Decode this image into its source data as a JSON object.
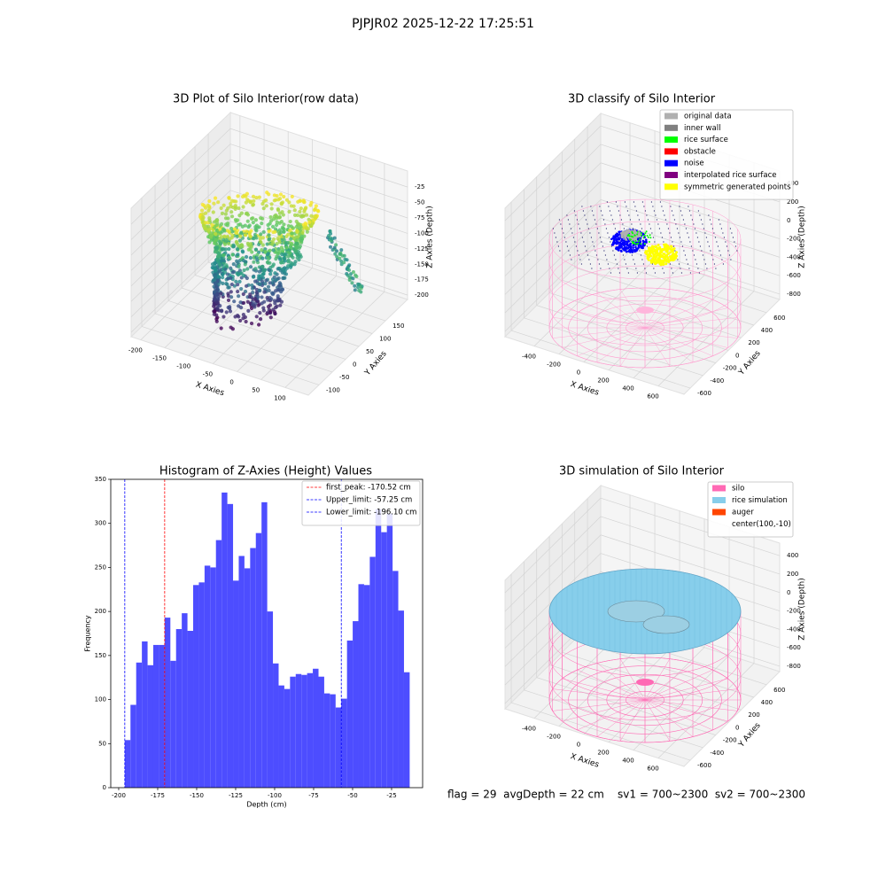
{
  "title": "PJPJR02 2025-12-22 17:25:51",
  "status": "flag = 29  avgDepth = 22 cm    sv1 = 700~2300  sv2 = 700~2300",
  "chart_data": [
    {
      "type": "scatter3d",
      "title": "3D Plot of Silo Interior(row data)",
      "xlabel": "X Axies",
      "ylabel": "Y Axies",
      "zlabel": "Z Axies (Depth)",
      "xlim": [
        -220,
        148
      ],
      "ylim": [
        -140,
        233
      ],
      "zlim": [
        -207,
        1
      ],
      "xticks": [
        -200,
        -150,
        -100,
        -50,
        0,
        50,
        100
      ],
      "yticks": [
        -100,
        -50,
        0,
        50,
        100,
        150
      ],
      "zticks": [
        -25,
        -50,
        -75,
        -100,
        -125,
        -150,
        -175,
        -200
      ]
    },
    {
      "type": "scatter3d",
      "title": "3D classify of Silo Interior",
      "xlabel": "X Axies",
      "ylabel": "Y Axies",
      "zlabel": "Z Axies (Depth)",
      "xlim": [
        -636,
        807
      ],
      "ylim": [
        -698,
        808
      ],
      "zlim": [
        -858,
        536
      ],
      "xticks": [
        -400,
        -200,
        0,
        200,
        400,
        600
      ],
      "yticks": [
        -600,
        -400,
        -200,
        0,
        200,
        400,
        600
      ],
      "zticks": [
        400,
        200,
        0,
        -200,
        -400,
        -600,
        -800
      ],
      "legend_loc": "upper right",
      "legend": [
        {
          "name": "original data",
          "color": "#b0b0b0"
        },
        {
          "name": "inner wall",
          "color": "#808080"
        },
        {
          "name": "rice surface",
          "color": "#00ff00"
        },
        {
          "name": "obstacle",
          "color": "#ff0000"
        },
        {
          "name": "noise",
          "color": "#0000ff"
        },
        {
          "name": "interpolated rice surface",
          "color": "#800080"
        },
        {
          "name": "symmetric generated points",
          "color": "#ffff00"
        }
      ]
    },
    {
      "type": "histogram",
      "title": "Histogram of Z-Axies (Height) Values",
      "xlabel": "Depth (cm)",
      "ylabel": "Frequency",
      "color": "#4d4dff",
      "xlim": [
        -205.1,
        -5.1
      ],
      "ylim": [
        0,
        350
      ],
      "xticks": [
        -200,
        -175,
        -150,
        -125,
        -100,
        -75,
        -50,
        -25
      ],
      "yticks": [
        0,
        50,
        100,
        150,
        200,
        250,
        300,
        350
      ],
      "bins": [
        -196.1,
        -192.45,
        -188.79,
        -185.14,
        -181.48,
        -177.83,
        -174.18,
        -170.52,
        -166.87,
        -163.21,
        -159.56,
        -155.91,
        -152.25,
        -148.6,
        -144.94,
        -141.29,
        -137.64,
        -133.98,
        -130.33,
        -126.67,
        -123.02,
        -119.37,
        -115.71,
        -112.06,
        -108.4,
        -104.75,
        -101.1,
        -97.44,
        -93.79,
        -90.13,
        -86.48,
        -82.83,
        -79.17,
        -75.52,
        -71.86,
        -68.21,
        -64.56,
        -60.9,
        -57.25,
        -53.59,
        -49.94,
        -46.29,
        -42.63,
        -38.98,
        -35.32,
        -31.67,
        -28.02,
        -24.36,
        -20.71,
        -17.05,
        -13.4
      ],
      "counts": [
        54,
        94,
        142,
        166,
        139,
        162,
        162,
        193,
        144,
        180,
        198,
        178,
        230,
        233,
        252,
        250,
        281,
        335,
        322,
        235,
        263,
        249,
        272,
        289,
        324,
        200,
        141,
        116,
        112,
        126,
        129,
        128,
        130,
        135,
        126,
        107,
        106,
        91,
        101,
        167,
        189,
        231,
        230,
        262,
        316,
        290,
        311,
        246,
        201,
        131
      ],
      "legend_loc": "upper right",
      "lines": [
        {
          "label": "first_peak: -170.52 cm",
          "value": -170.52,
          "color": "#ff0000"
        },
        {
          "label": "Upper_limit: -57.25 cm",
          "value": -57.25,
          "color": "#0000ff"
        },
        {
          "label": "Lower_limit: -196.10 cm",
          "value": -196.1,
          "color": "#0000ff"
        }
      ]
    },
    {
      "type": "surface3d",
      "title": "3D simulation of Silo Interior",
      "xlabel": "X Axies",
      "ylabel": "Y Axies",
      "zlabel": "Z Axies (Depth)",
      "xlim": [
        -636,
        807
      ],
      "ylim": [
        -698,
        808
      ],
      "zlim": [
        -858,
        536
      ],
      "xticks": [
        -400,
        -200,
        0,
        200,
        400,
        600
      ],
      "yticks": [
        -600,
        -400,
        -200,
        0,
        200,
        400,
        600
      ],
      "zticks": [
        400,
        200,
        0,
        -200,
        -400,
        -600,
        -800
      ],
      "legend_loc": "upper right",
      "legend": [
        {
          "name": "silo",
          "color": "#ff69b4"
        },
        {
          "name": "rice simulation",
          "color": "#87ceeb"
        },
        {
          "name": "auger",
          "color": "#ff4500"
        },
        {
          "name": "center(100,-10)"
        }
      ]
    }
  ]
}
